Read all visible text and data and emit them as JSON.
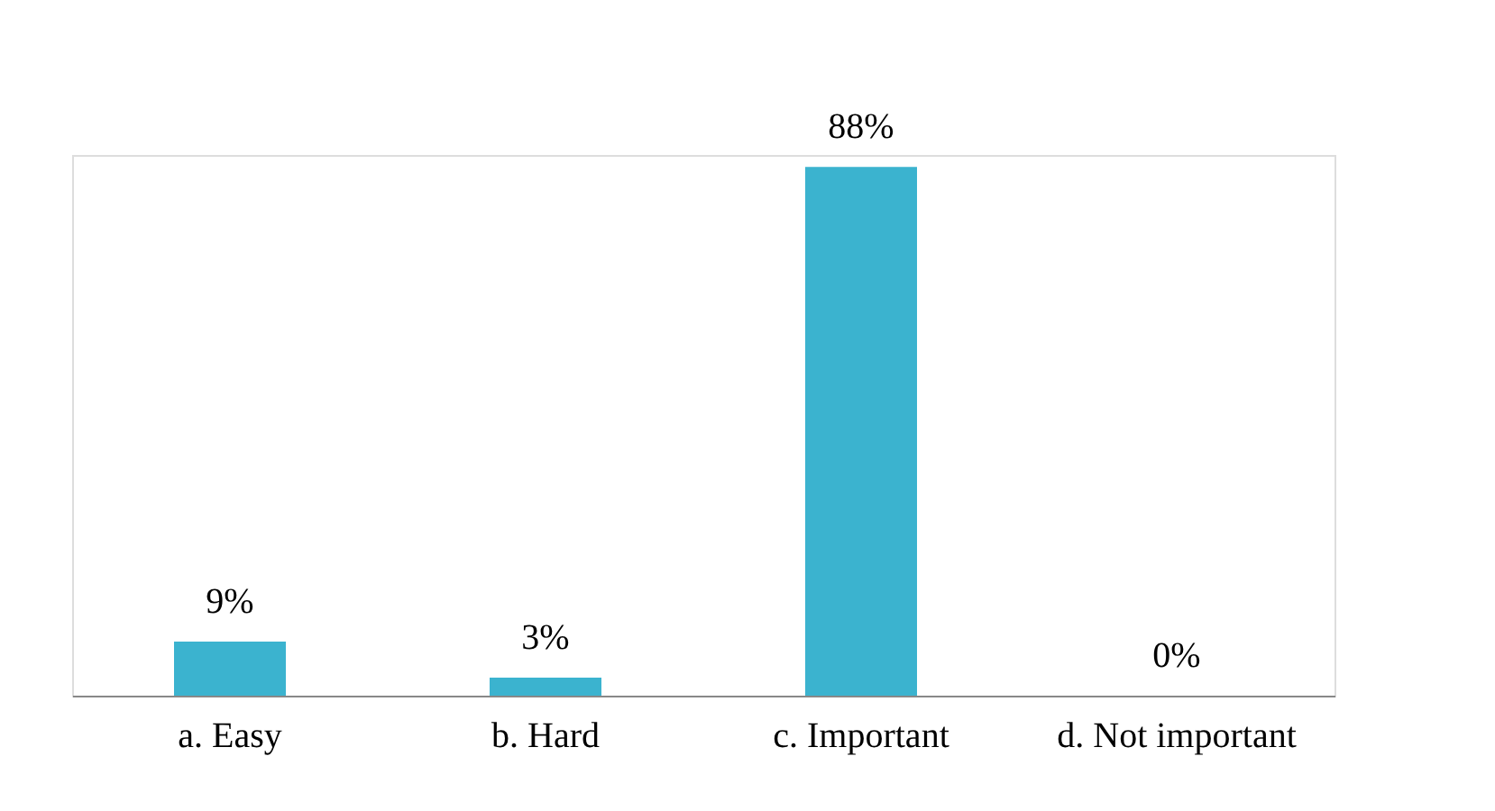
{
  "chart_data": {
    "type": "bar",
    "categories": [
      "a. Easy",
      "b. Hard",
      "c. Important",
      "d. Not important"
    ],
    "values": [
      9,
      3,
      88,
      0
    ],
    "value_labels": [
      "9%",
      "3%",
      "88%",
      "0%"
    ],
    "color": "#3bb3cf"
  }
}
